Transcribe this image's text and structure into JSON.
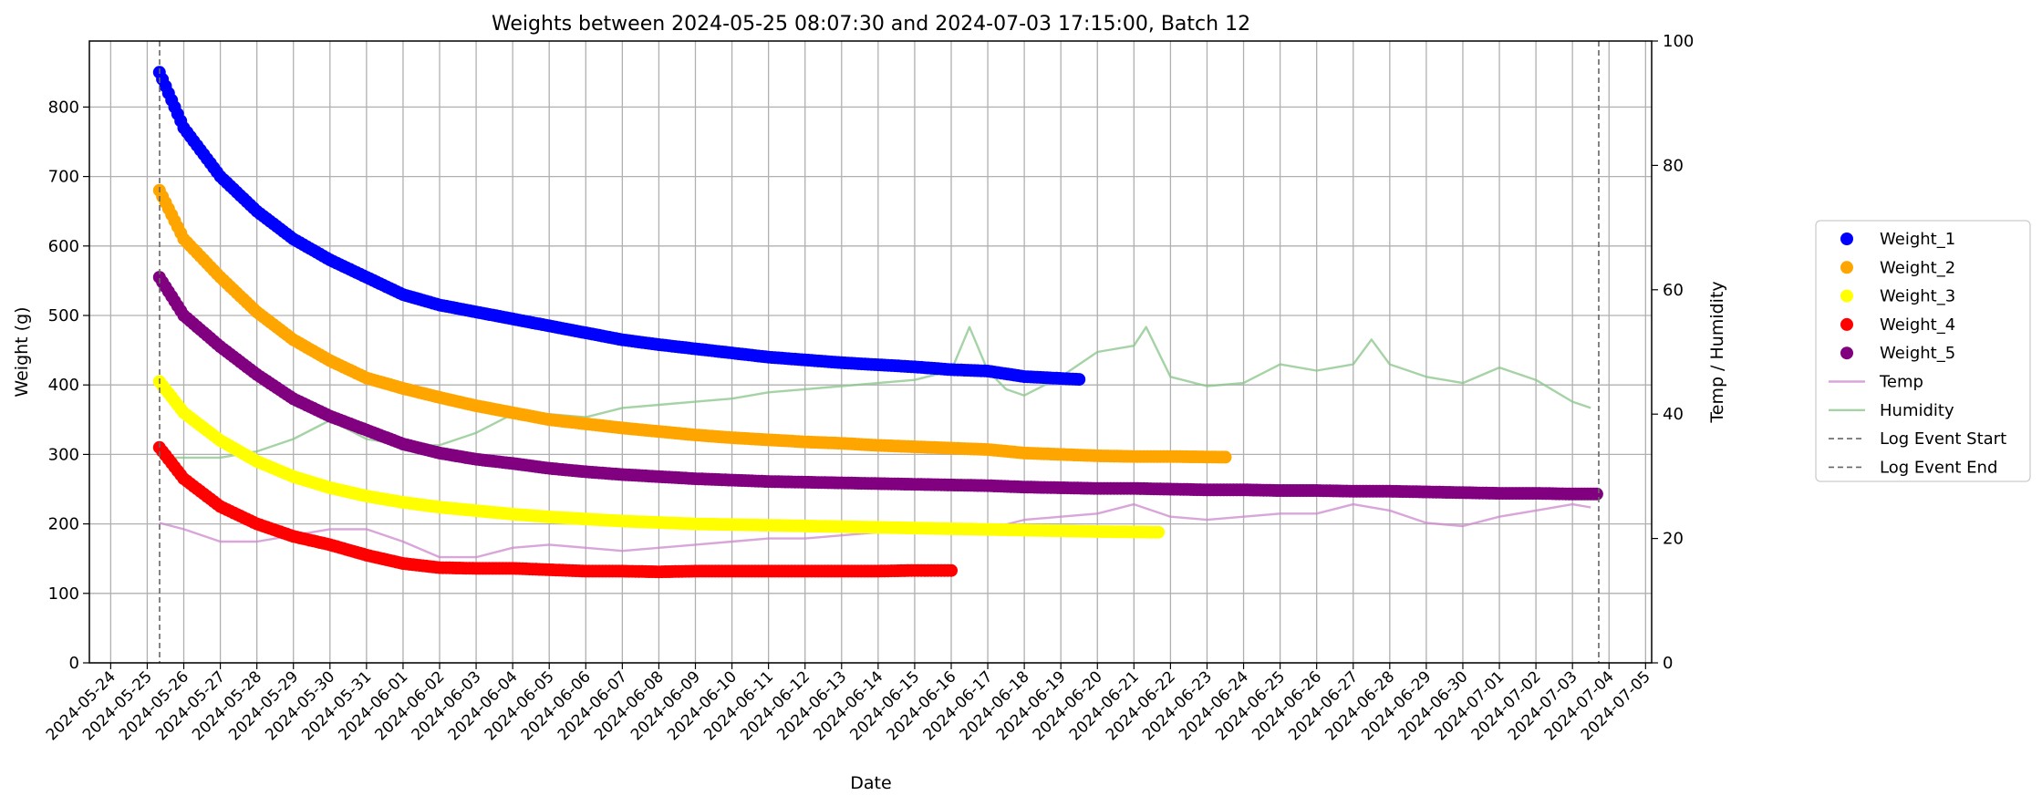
{
  "chart_data": {
    "type": "scatter",
    "title": "Weights between 2024-05-25 08:07:30 and 2024-07-03 17:15:00, Batch 12",
    "xlabel": "Date",
    "ylabel": "Weight (g)",
    "y2label": "Temp / Humidity",
    "xlim": [
      "2024-05-23T10:00",
      "2024-07-05T04:00"
    ],
    "ylim": [
      0,
      895
    ],
    "y2lim": [
      0,
      100
    ],
    "grid": true,
    "legend_position": "right, outside plot",
    "y_ticks": [
      "0",
      "100",
      "200",
      "300",
      "400",
      "500",
      "600",
      "700",
      "800"
    ],
    "y2_ticks": [
      "0",
      "20",
      "40",
      "60",
      "80",
      "100"
    ],
    "x_ticks": [
      "2024-05-24",
      "2024-05-25",
      "2024-05-26",
      "2024-05-27",
      "2024-05-28",
      "2024-05-29",
      "2024-05-30",
      "2024-05-31",
      "2024-06-01",
      "2024-06-02",
      "2024-06-03",
      "2024-06-04",
      "2024-06-05",
      "2024-06-06",
      "2024-06-07",
      "2024-06-08",
      "2024-06-09",
      "2024-06-10",
      "2024-06-11",
      "2024-06-12",
      "2024-06-13",
      "2024-06-14",
      "2024-06-15",
      "2024-06-16",
      "2024-06-17",
      "2024-06-18",
      "2024-06-19",
      "2024-06-20",
      "2024-06-21",
      "2024-06-22",
      "2024-06-23",
      "2024-06-24",
      "2024-06-25",
      "2024-06-26",
      "2024-06-27",
      "2024-06-28",
      "2024-06-29",
      "2024-06-30",
      "2024-07-01",
      "2024-07-02",
      "2024-07-03",
      "2024-07-04",
      "2024-07-05"
    ],
    "series": [
      {
        "name": "Weight_1",
        "color": "#0000ff",
        "kind": "points",
        "axis": "left",
        "points": [
          [
            "2024-05-25T08:00",
            850
          ],
          [
            "2024-05-26T00:00",
            770
          ],
          [
            "2024-05-27T00:00",
            700
          ],
          [
            "2024-05-28T00:00",
            650
          ],
          [
            "2024-05-29T00:00",
            610
          ],
          [
            "2024-05-30T00:00",
            580
          ],
          [
            "2024-05-31T00:00",
            555
          ],
          [
            "2024-06-01T00:00",
            530
          ],
          [
            "2024-06-02T00:00",
            515
          ],
          [
            "2024-06-03T00:00",
            505
          ],
          [
            "2024-06-04T00:00",
            495
          ],
          [
            "2024-06-05T00:00",
            485
          ],
          [
            "2024-06-06T00:00",
            475
          ],
          [
            "2024-06-07T00:00",
            465
          ],
          [
            "2024-06-08T00:00",
            458
          ],
          [
            "2024-06-09T00:00",
            452
          ],
          [
            "2024-06-10T00:00",
            446
          ],
          [
            "2024-06-11T00:00",
            440
          ],
          [
            "2024-06-12T00:00",
            436
          ],
          [
            "2024-06-13T00:00",
            432
          ],
          [
            "2024-06-14T00:00",
            429
          ],
          [
            "2024-06-15T00:00",
            426
          ],
          [
            "2024-06-16T00:00",
            422
          ],
          [
            "2024-06-17T00:00",
            420
          ],
          [
            "2024-06-18T00:00",
            412
          ],
          [
            "2024-06-19T12:00",
            408
          ]
        ]
      },
      {
        "name": "Weight_2",
        "color": "#ffa500",
        "kind": "points",
        "axis": "left",
        "points": [
          [
            "2024-05-25T08:00",
            680
          ],
          [
            "2024-05-26T00:00",
            610
          ],
          [
            "2024-05-27T00:00",
            555
          ],
          [
            "2024-05-28T00:00",
            505
          ],
          [
            "2024-05-29T00:00",
            465
          ],
          [
            "2024-05-30T00:00",
            435
          ],
          [
            "2024-05-31T00:00",
            410
          ],
          [
            "2024-06-01T00:00",
            395
          ],
          [
            "2024-06-02T00:00",
            382
          ],
          [
            "2024-06-03T00:00",
            370
          ],
          [
            "2024-06-04T00:00",
            360
          ],
          [
            "2024-06-05T00:00",
            350
          ],
          [
            "2024-06-06T00:00",
            344
          ],
          [
            "2024-06-07T00:00",
            338
          ],
          [
            "2024-06-08T00:00",
            333
          ],
          [
            "2024-06-09T00:00",
            328
          ],
          [
            "2024-06-10T00:00",
            324
          ],
          [
            "2024-06-11T00:00",
            321
          ],
          [
            "2024-06-12T00:00",
            318
          ],
          [
            "2024-06-13T00:00",
            316
          ],
          [
            "2024-06-14T00:00",
            313
          ],
          [
            "2024-06-15T00:00",
            311
          ],
          [
            "2024-06-16T00:00",
            309
          ],
          [
            "2024-06-17T00:00",
            307
          ],
          [
            "2024-06-18T00:00",
            302
          ],
          [
            "2024-06-19T00:00",
            300
          ],
          [
            "2024-06-20T00:00",
            298
          ],
          [
            "2024-06-21T00:00",
            297
          ],
          [
            "2024-06-22T00:00",
            297
          ],
          [
            "2024-06-23T12:00",
            296
          ]
        ]
      },
      {
        "name": "Weight_3",
        "color": "#ffff00",
        "kind": "points",
        "axis": "left",
        "points": [
          [
            "2024-05-25T08:00",
            405
          ],
          [
            "2024-05-26T00:00",
            360
          ],
          [
            "2024-05-27T00:00",
            320
          ],
          [
            "2024-05-28T00:00",
            290
          ],
          [
            "2024-05-29T00:00",
            268
          ],
          [
            "2024-05-30T00:00",
            252
          ],
          [
            "2024-05-31T00:00",
            240
          ],
          [
            "2024-06-01T00:00",
            231
          ],
          [
            "2024-06-02T00:00",
            224
          ],
          [
            "2024-06-03T00:00",
            219
          ],
          [
            "2024-06-04T00:00",
            214
          ],
          [
            "2024-06-05T00:00",
            210
          ],
          [
            "2024-06-06T00:00",
            207
          ],
          [
            "2024-06-07T00:00",
            204
          ],
          [
            "2024-06-08T00:00",
            202
          ],
          [
            "2024-06-09T00:00",
            200
          ],
          [
            "2024-06-10T00:00",
            199
          ],
          [
            "2024-06-11T00:00",
            198
          ],
          [
            "2024-06-12T00:00",
            197
          ],
          [
            "2024-06-13T00:00",
            196
          ],
          [
            "2024-06-14T00:00",
            195
          ],
          [
            "2024-06-15T00:00",
            194
          ],
          [
            "2024-06-16T00:00",
            193
          ],
          [
            "2024-06-17T00:00",
            192
          ],
          [
            "2024-06-18T00:00",
            191
          ],
          [
            "2024-06-19T00:00",
            190
          ],
          [
            "2024-06-20T00:00",
            189
          ],
          [
            "2024-06-21T16:00",
            188
          ]
        ]
      },
      {
        "name": "Weight_4",
        "color": "#ff0000",
        "kind": "points",
        "axis": "left",
        "points": [
          [
            "2024-05-25T08:00",
            310
          ],
          [
            "2024-05-26T00:00",
            265
          ],
          [
            "2024-05-27T00:00",
            225
          ],
          [
            "2024-05-28T00:00",
            200
          ],
          [
            "2024-05-29T00:00",
            182
          ],
          [
            "2024-05-30T00:00",
            170
          ],
          [
            "2024-05-31T00:00",
            155
          ],
          [
            "2024-06-01T00:00",
            143
          ],
          [
            "2024-06-02T00:00",
            137
          ],
          [
            "2024-06-03T00:00",
            136
          ],
          [
            "2024-06-04T00:00",
            136
          ],
          [
            "2024-06-05T00:00",
            134
          ],
          [
            "2024-06-06T00:00",
            132
          ],
          [
            "2024-06-07T00:00",
            132
          ],
          [
            "2024-06-08T00:00",
            131
          ],
          [
            "2024-06-09T00:00",
            132
          ],
          [
            "2024-06-10T00:00",
            132
          ],
          [
            "2024-06-11T00:00",
            132
          ],
          [
            "2024-06-12T00:00",
            132
          ],
          [
            "2024-06-13T00:00",
            132
          ],
          [
            "2024-06-14T00:00",
            132
          ],
          [
            "2024-06-15T00:00",
            133
          ],
          [
            "2024-06-16T00:00",
            133
          ]
        ]
      },
      {
        "name": "Weight_5",
        "color": "#800080",
        "kind": "points",
        "axis": "left",
        "points": [
          [
            "2024-05-25T08:00",
            555
          ],
          [
            "2024-05-26T00:00",
            500
          ],
          [
            "2024-05-27T00:00",
            455
          ],
          [
            "2024-05-28T00:00",
            415
          ],
          [
            "2024-05-29T00:00",
            380
          ],
          [
            "2024-05-30T00:00",
            355
          ],
          [
            "2024-05-31T00:00",
            335
          ],
          [
            "2024-06-01T00:00",
            315
          ],
          [
            "2024-06-02T00:00",
            302
          ],
          [
            "2024-06-03T00:00",
            293
          ],
          [
            "2024-06-04T00:00",
            287
          ],
          [
            "2024-06-05T00:00",
            280
          ],
          [
            "2024-06-06T00:00",
            275
          ],
          [
            "2024-06-07T00:00",
            271
          ],
          [
            "2024-06-08T00:00",
            268
          ],
          [
            "2024-06-09T00:00",
            265
          ],
          [
            "2024-06-10T00:00",
            263
          ],
          [
            "2024-06-11T00:00",
            261
          ],
          [
            "2024-06-12T00:00",
            260
          ],
          [
            "2024-06-13T00:00",
            259
          ],
          [
            "2024-06-14T00:00",
            258
          ],
          [
            "2024-06-15T00:00",
            257
          ],
          [
            "2024-06-16T00:00",
            256
          ],
          [
            "2024-06-17T00:00",
            255
          ],
          [
            "2024-06-18T00:00",
            253
          ],
          [
            "2024-06-19T00:00",
            252
          ],
          [
            "2024-06-20T00:00",
            251
          ],
          [
            "2024-06-21T00:00",
            251
          ],
          [
            "2024-06-22T00:00",
            250
          ],
          [
            "2024-06-23T00:00",
            249
          ],
          [
            "2024-06-24T00:00",
            249
          ],
          [
            "2024-06-25T00:00",
            248
          ],
          [
            "2024-06-26T00:00",
            248
          ],
          [
            "2024-06-27T00:00",
            247
          ],
          [
            "2024-06-28T00:00",
            247
          ],
          [
            "2024-06-29T00:00",
            246
          ],
          [
            "2024-06-30T00:00",
            245
          ],
          [
            "2024-07-01T00:00",
            244
          ],
          [
            "2024-07-02T00:00",
            244
          ],
          [
            "2024-07-03T00:00",
            243
          ],
          [
            "2024-07-03T16:00",
            243
          ]
        ]
      },
      {
        "name": "Temp",
        "color": "#cc88cc",
        "kind": "line",
        "axis": "right",
        "points": [
          [
            "2024-05-25T08:00",
            22.5
          ],
          [
            "2024-05-26T00:00",
            21.5
          ],
          [
            "2024-05-27T00:00",
            19.5
          ],
          [
            "2024-05-28T00:00",
            19.5
          ],
          [
            "2024-05-29T00:00",
            20.5
          ],
          [
            "2024-05-30T00:00",
            21.5
          ],
          [
            "2024-05-31T00:00",
            21.5
          ],
          [
            "2024-06-01T00:00",
            19.5
          ],
          [
            "2024-06-02T00:00",
            17
          ],
          [
            "2024-06-03T00:00",
            17
          ],
          [
            "2024-06-04T00:00",
            18.5
          ],
          [
            "2024-06-05T00:00",
            19
          ],
          [
            "2024-06-06T00:00",
            18.5
          ],
          [
            "2024-06-07T00:00",
            18
          ],
          [
            "2024-06-08T00:00",
            18.5
          ],
          [
            "2024-06-09T00:00",
            19
          ],
          [
            "2024-06-10T00:00",
            19.5
          ],
          [
            "2024-06-11T00:00",
            20
          ],
          [
            "2024-06-12T00:00",
            20
          ],
          [
            "2024-06-13T00:00",
            20.5
          ],
          [
            "2024-06-14T00:00",
            21
          ],
          [
            "2024-06-15T00:00",
            22
          ],
          [
            "2024-06-16T00:00",
            21
          ],
          [
            "2024-06-17T00:00",
            21.5
          ],
          [
            "2024-06-18T00:00",
            23
          ],
          [
            "2024-06-19T00:00",
            23.5
          ],
          [
            "2024-06-20T00:00",
            24
          ],
          [
            "2024-06-21T00:00",
            25.5
          ],
          [
            "2024-06-22T00:00",
            23.5
          ],
          [
            "2024-06-23T00:00",
            23
          ],
          [
            "2024-06-24T00:00",
            23.5
          ],
          [
            "2024-06-25T00:00",
            24
          ],
          [
            "2024-06-26T00:00",
            24
          ],
          [
            "2024-06-27T00:00",
            25.5
          ],
          [
            "2024-06-28T00:00",
            24.5
          ],
          [
            "2024-06-29T00:00",
            22.5
          ],
          [
            "2024-06-30T00:00",
            22
          ],
          [
            "2024-07-01T00:00",
            23.5
          ],
          [
            "2024-07-02T00:00",
            24.5
          ],
          [
            "2024-07-03T00:00",
            25.5
          ],
          [
            "2024-07-03T12:00",
            25
          ]
        ]
      },
      {
        "name": "Humidity",
        "color": "#88c488",
        "kind": "line",
        "axis": "right",
        "points": [
          [
            "2024-05-25T08:00",
            33
          ],
          [
            "2024-05-26T00:00",
            33
          ],
          [
            "2024-05-27T00:00",
            33
          ],
          [
            "2024-05-28T00:00",
            34
          ],
          [
            "2024-05-29T00:00",
            36
          ],
          [
            "2024-05-30T00:00",
            39
          ],
          [
            "2024-05-31T00:00",
            36
          ],
          [
            "2024-06-01T00:00",
            35
          ],
          [
            "2024-06-02T00:00",
            35
          ],
          [
            "2024-06-03T00:00",
            37
          ],
          [
            "2024-06-04T00:00",
            40
          ],
          [
            "2024-06-05T00:00",
            40
          ],
          [
            "2024-06-06T00:00",
            39.5
          ],
          [
            "2024-06-07T00:00",
            41
          ],
          [
            "2024-06-08T00:00",
            41.5
          ],
          [
            "2024-06-09T00:00",
            42
          ],
          [
            "2024-06-10T00:00",
            42.5
          ],
          [
            "2024-06-11T00:00",
            43.5
          ],
          [
            "2024-06-12T00:00",
            44
          ],
          [
            "2024-06-13T00:00",
            44.5
          ],
          [
            "2024-06-14T00:00",
            45
          ],
          [
            "2024-06-15T00:00",
            45.5
          ],
          [
            "2024-06-16T00:00",
            47
          ],
          [
            "2024-06-16T12:00",
            54
          ],
          [
            "2024-06-17T00:00",
            47
          ],
          [
            "2024-06-17T12:00",
            44
          ],
          [
            "2024-06-18T00:00",
            43
          ],
          [
            "2024-06-19T00:00",
            46
          ],
          [
            "2024-06-20T00:00",
            50
          ],
          [
            "2024-06-21T00:00",
            51
          ],
          [
            "2024-06-21T08:00",
            54
          ],
          [
            "2024-06-22T00:00",
            46
          ],
          [
            "2024-06-23T00:00",
            44.5
          ],
          [
            "2024-06-24T00:00",
            45
          ],
          [
            "2024-06-25T00:00",
            48
          ],
          [
            "2024-06-26T00:00",
            47
          ],
          [
            "2024-06-27T00:00",
            48
          ],
          [
            "2024-06-27T12:00",
            52
          ],
          [
            "2024-06-28T00:00",
            48
          ],
          [
            "2024-06-29T00:00",
            46
          ],
          [
            "2024-06-30T00:00",
            45
          ],
          [
            "2024-07-01T00:00",
            47.5
          ],
          [
            "2024-07-02T00:00",
            45.5
          ],
          [
            "2024-07-03T00:00",
            42
          ],
          [
            "2024-07-03T12:00",
            41
          ]
        ]
      },
      {
        "name": "Log Event Start",
        "color": "#666666",
        "kind": "vline",
        "x": "2024-05-25T08:07"
      },
      {
        "name": "Log Event End",
        "color": "#666666",
        "kind": "vline",
        "x": "2024-07-03T17:15"
      }
    ]
  }
}
